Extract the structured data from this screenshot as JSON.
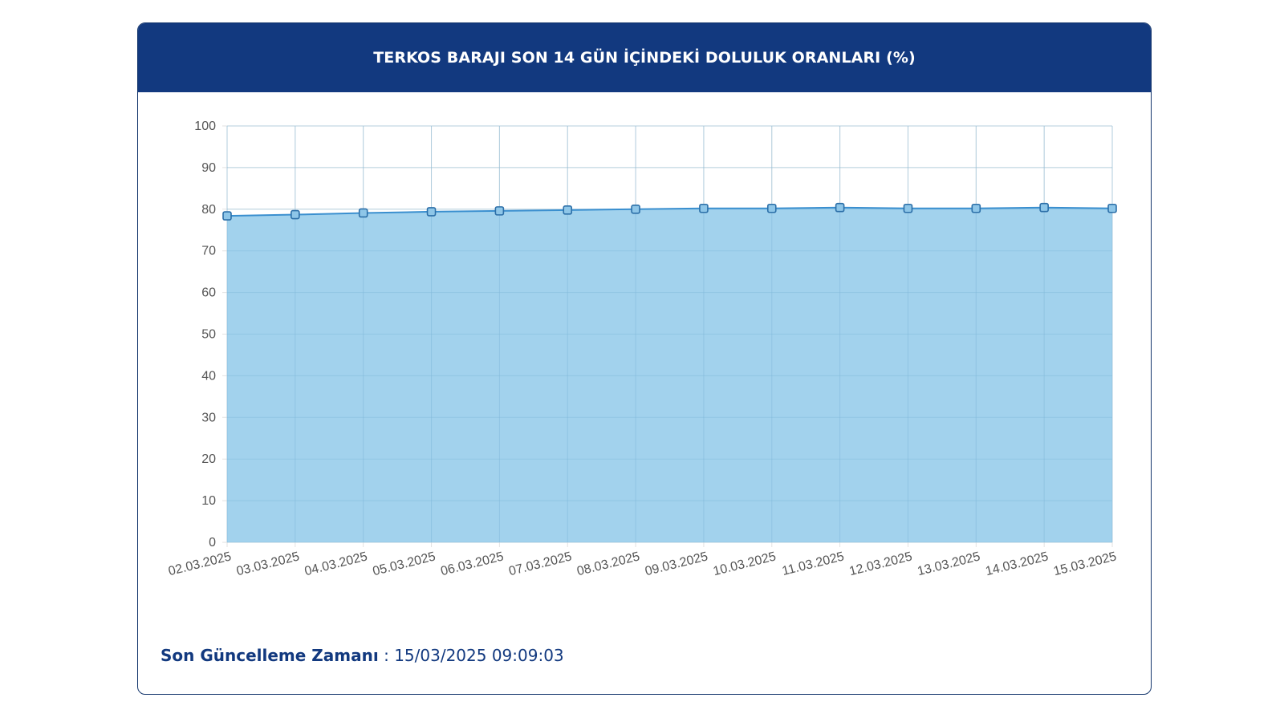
{
  "header": {
    "title": "TERKOS BARAJI SON 14 GÜN İÇİNDEKİ DOLULUK ORANLARI (%)"
  },
  "footer": {
    "label": "Son Güncelleme Zamanı",
    "separator": " : ",
    "value": "15/03/2025 09:09:03"
  },
  "colors": {
    "header_bg": "#12397f",
    "area_fill": "#9dd0ec",
    "line": "#3a8fcf",
    "grid": "#e2e2e2"
  },
  "chart_data": {
    "type": "area",
    "title": "TERKOS BARAJI SON 14 GÜN İÇİNDEKİ DOLULUK ORANLARI (%)",
    "categories": [
      "02.03.2025",
      "03.03.2025",
      "04.03.2025",
      "05.03.2025",
      "06.03.2025",
      "07.03.2025",
      "08.03.2025",
      "09.03.2025",
      "10.03.2025",
      "11.03.2025",
      "12.03.2025",
      "13.03.2025",
      "14.03.2025",
      "15.03.2025"
    ],
    "values": [
      78.4,
      78.7,
      79.1,
      79.4,
      79.6,
      79.8,
      80.0,
      80.2,
      80.2,
      80.4,
      80.2,
      80.2,
      80.4,
      80.2
    ],
    "ylim": [
      0,
      100
    ],
    "yticks": [
      0,
      10,
      20,
      30,
      40,
      50,
      60,
      70,
      80,
      90,
      100
    ],
    "grid": true,
    "legend": "none",
    "xlabel": "",
    "ylabel": ""
  }
}
